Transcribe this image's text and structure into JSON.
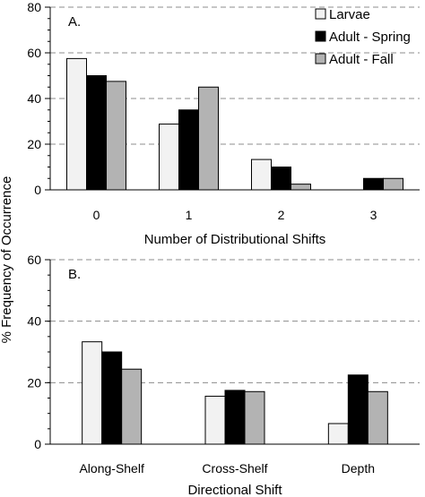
{
  "chart_data": [
    {
      "type": "bar",
      "panel_label": "A.",
      "categories": [
        "0",
        "1",
        "2",
        "3"
      ],
      "series": [
        {
          "name": "Larvae",
          "color": "#f2f2f2",
          "values": [
            57.5,
            28.8,
            13.3,
            0
          ]
        },
        {
          "name": "Adult - Spring",
          "color": "#000000",
          "values": [
            50.0,
            35.0,
            10.0,
            5.0
          ]
        },
        {
          "name": "Adult - Fall",
          "color": "#b3b3b3",
          "values": [
            47.5,
            45.0,
            2.5,
            5.0
          ]
        }
      ],
      "xlabel": "Number of Distributional Shifts",
      "ylim": [
        0,
        80
      ],
      "yticks": [
        0,
        20,
        40,
        60,
        80
      ],
      "grid": "horizontal dashed",
      "legend": "top-right"
    },
    {
      "type": "bar",
      "panel_label": "B.",
      "categories": [
        "Along-Shelf",
        "Cross-Shelf",
        "Depth"
      ],
      "series": [
        {
          "name": "Larvae",
          "color": "#f2f2f2",
          "values": [
            33.3,
            15.6,
            6.7
          ]
        },
        {
          "name": "Adult - Spring",
          "color": "#000000",
          "values": [
            30.0,
            17.5,
            22.5
          ]
        },
        {
          "name": "Adult - Fall",
          "color": "#b3b3b3",
          "values": [
            24.4,
            17.1,
            17.1
          ]
        }
      ],
      "xlabel": "Directional Shift",
      "ylim": [
        0,
        60
      ],
      "yticks": [
        0,
        20,
        40,
        60
      ],
      "grid": "horizontal dashed"
    }
  ],
  "shared_ylabel": "% Frequency of Occurrence"
}
